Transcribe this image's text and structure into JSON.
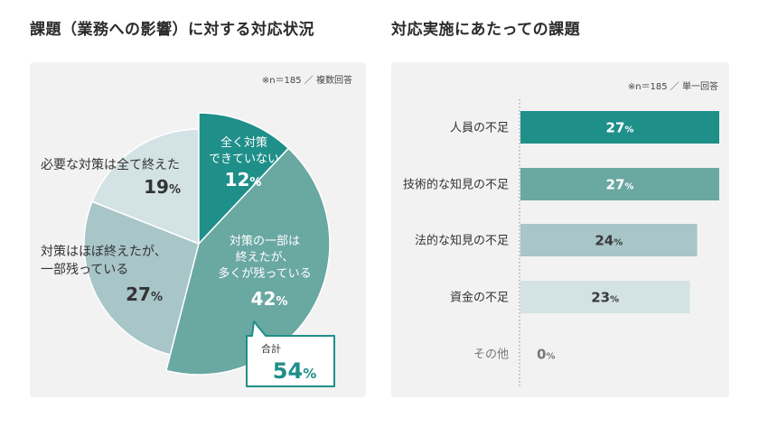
{
  "chart_data": [
    {
      "type": "pie",
      "title": "課題（業務への影響）に対する対応状況",
      "note": "※n＝185 ／ 複数回答",
      "unit": "%",
      "slices": [
        {
          "label_lines": [
            "全く対策",
            "できていない"
          ],
          "value": 12,
          "in_total": true,
          "color": "#1f8f8a",
          "text_color": "#ffffff"
        },
        {
          "label_lines": [
            "対策の一部は",
            "終えたが、",
            "多くが残っている"
          ],
          "value": 42,
          "in_total": true,
          "color": "#6aa8a2",
          "text_color": "#ffffff"
        },
        {
          "label_lines": [
            "対策はほぼ終えたが、",
            "一部残っている"
          ],
          "value": 27,
          "in_total": false,
          "color": "#a8c5c8",
          "text_color": "#333333"
        },
        {
          "label_lines": [
            "必要な対策は全て終えた"
          ],
          "value": 19,
          "in_total": false,
          "color": "#d3e2e5",
          "text_color": "#333333"
        }
      ],
      "callout": {
        "label": "合計",
        "value": 54,
        "color": "#1f8f8a"
      }
    },
    {
      "type": "bar",
      "title": "対応実施にあたっての課題",
      "note": "※n＝185 ／ 単一回答",
      "unit": "%",
      "categories": [
        "人員の不足",
        "技術的な知見の不足",
        "法的な知見の不足",
        "資金の不足",
        "その他"
      ],
      "values": [
        27,
        27,
        24,
        23,
        0
      ],
      "bar_colors": [
        "#1f8f8a",
        "#6aa8a2",
        "#a8c5c8",
        "#d3e2e5",
        "#d3e2e5"
      ],
      "value_label_colors": [
        "#ffffff",
        "#ffffff",
        "#3a3a3a",
        "#3a3a3a",
        "#777777"
      ],
      "category_label_colors": [
        "#333333",
        "#333333",
        "#333333",
        "#333333",
        "#777777"
      ]
    }
  ]
}
